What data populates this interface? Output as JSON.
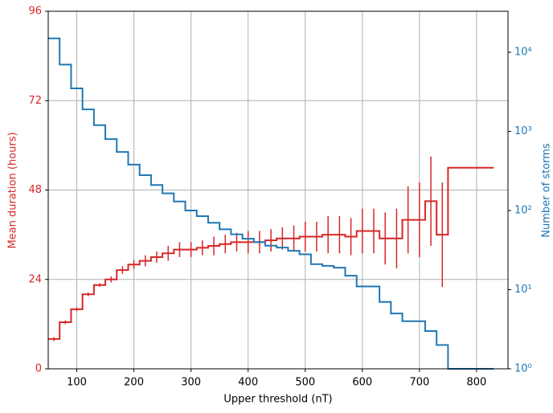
{
  "chart_data": {
    "type": "line",
    "xlabel": "Upper threshold (nT)",
    "ylabel": "Mean duration (hours)",
    "y2label": "Number of storms",
    "x": [
      50,
      70,
      90,
      110,
      130,
      150,
      170,
      190,
      210,
      230,
      250,
      270,
      290,
      310,
      330,
      350,
      370,
      390,
      410,
      430,
      450,
      470,
      490,
      510,
      530,
      550,
      570,
      590,
      610,
      630,
      650,
      670,
      690,
      710,
      730,
      750,
      770,
      790,
      810,
      830
    ],
    "series": [
      {
        "name": "Mean duration (hours)",
        "color": "#d62728",
        "axis": "y",
        "values": [
          8,
          12.5,
          16,
          20,
          22.5,
          24,
          26.5,
          28,
          29,
          30,
          31,
          32,
          32,
          32.5,
          33,
          33.5,
          34,
          34,
          34,
          34.5,
          35,
          35,
          35.5,
          35.5,
          36,
          36,
          35.5,
          37,
          37,
          35,
          35,
          40,
          40,
          45,
          36,
          54,
          54,
          54,
          54,
          54
        ],
        "errors": [
          0.5,
          0.5,
          0.5,
          0.5,
          0.5,
          0.8,
          1,
          1.2,
          1.5,
          1.5,
          2,
          2,
          2,
          2,
          2.5,
          2.5,
          2.5,
          3,
          3,
          3,
          3,
          3.5,
          4,
          4,
          5,
          5,
          5,
          6,
          6,
          7,
          8,
          9,
          10,
          12,
          14,
          null,
          null,
          null,
          null,
          null
        ]
      },
      {
        "name": "Number of storms",
        "color": "#1f77b4",
        "axis": "y2",
        "values": [
          15000,
          7000,
          3500,
          1900,
          1200,
          800,
          550,
          380,
          280,
          210,
          165,
          130,
          100,
          85,
          70,
          58,
          50,
          44,
          40,
          36,
          34,
          31,
          28,
          21,
          20,
          19,
          15,
          11,
          11,
          7,
          5,
          4,
          4,
          3,
          2,
          1,
          1,
          1,
          1,
          1
        ]
      }
    ],
    "xlim": [
      50,
      855
    ],
    "xticks": [
      100,
      200,
      300,
      400,
      500,
      600,
      700,
      800
    ],
    "ylim": [
      0,
      96
    ],
    "yticks": [
      0,
      24,
      48,
      72,
      96
    ],
    "y2lim": [
      1,
      33000
    ],
    "y2scale": "log",
    "y2ticks": [
      {
        "value": 1,
        "label": "10⁰"
      },
      {
        "value": 10,
        "label": "10¹"
      },
      {
        "value": 100,
        "label": "10²"
      },
      {
        "value": 1000,
        "label": "10³"
      },
      {
        "value": 10000,
        "label": "10⁴"
      }
    ],
    "grid": true
  }
}
